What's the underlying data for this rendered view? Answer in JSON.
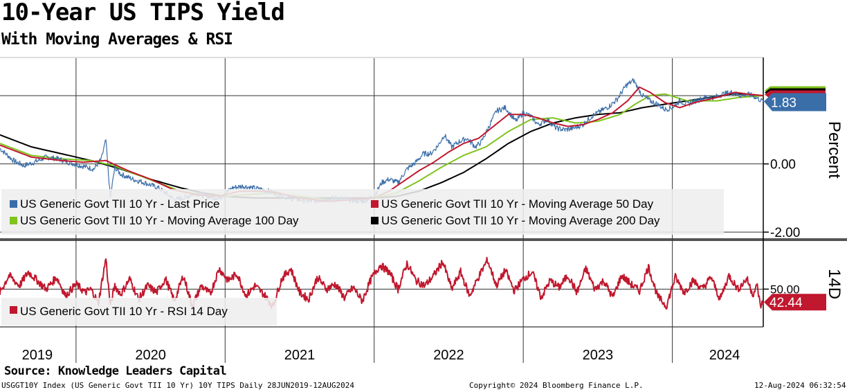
{
  "title": "10-Year US TIPS Yield",
  "subtitle": "With Moving Averages & RSI",
  "source": "Source: Knowledge Leaders Capital",
  "footer": {
    "left": "USGGT10Y Index (US Generic Govt TII 10 Yr) 10Y TIPS  Daily 28JUN2019-12AUG2024",
    "middle": "Copyright© 2024 Bloomberg Finance L.P.",
    "right": "12-Aug-2024 06:32:54"
  },
  "chart_data": [
    {
      "type": "line",
      "panel": "upper",
      "ylabel": "Percent",
      "ylim": [
        -2.2,
        3.1
      ],
      "yticks": [
        -2.0,
        0.0
      ],
      "ytick_labels": [
        "-2.00",
        "0.00"
      ],
      "x_range": [
        2019.49,
        2024.61
      ],
      "x_year_dividers": [
        2020,
        2021,
        2022,
        2023,
        2024
      ],
      "x_labels": [
        {
          "label": "2019",
          "x": 2019.74
        },
        {
          "label": "2020",
          "x": 2020.5
        },
        {
          "label": "2021",
          "x": 2021.5
        },
        {
          "label": "2022",
          "x": 2022.5
        },
        {
          "label": "2023",
          "x": 2023.5
        },
        {
          "label": "2024",
          "x": 2024.35
        }
      ],
      "last_value_label": "1.83",
      "colors": {
        "last": "#3a6ea8",
        "ma50": "#c0182e",
        "ma100": "#7fc31c",
        "ma200": "#000000"
      },
      "series": [
        {
          "name": "US Generic Govt TII 10 Yr - Last Price",
          "color": "#3a6ea8",
          "x": [
            2019.49,
            2019.58,
            2019.65,
            2019.72,
            2019.8,
            2019.88,
            2019.95,
            2020.03,
            2020.12,
            2020.17,
            2020.2,
            2020.23,
            2020.26,
            2020.3,
            2020.38,
            2020.46,
            2020.55,
            2020.6,
            2020.66,
            2020.72,
            2020.8,
            2020.88,
            2020.96,
            2021.05,
            2021.12,
            2021.18,
            2021.25,
            2021.33,
            2021.42,
            2021.5,
            2021.58,
            2021.66,
            2021.75,
            2021.83,
            2021.92,
            2022.0,
            2022.05,
            2022.1,
            2022.16,
            2022.22,
            2022.28,
            2022.33,
            2022.38,
            2022.43,
            2022.47,
            2022.52,
            2022.57,
            2022.62,
            2022.68,
            2022.72,
            2022.77,
            2022.82,
            2022.88,
            2022.95,
            2023.0,
            2023.05,
            2023.1,
            2023.16,
            2023.22,
            2023.28,
            2023.34,
            2023.4,
            2023.46,
            2023.52,
            2023.58,
            2023.63,
            2023.69,
            2023.74,
            2023.8,
            2023.85,
            2023.9,
            2023.95,
            2024.0,
            2024.05,
            2024.1,
            2024.16,
            2024.22,
            2024.28,
            2024.34,
            2024.4,
            2024.46,
            2024.5,
            2024.54,
            2024.58,
            2024.61
          ],
          "y": [
            0.45,
            0.1,
            -0.05,
            0.05,
            0.2,
            0.15,
            0.05,
            -0.05,
            -0.15,
            0.15,
            0.7,
            -1.0,
            -0.1,
            -0.3,
            -0.45,
            -0.55,
            -0.7,
            -0.85,
            -1.05,
            -1.0,
            -0.85,
            -0.95,
            -1.0,
            -0.7,
            -0.65,
            -0.7,
            -0.75,
            -0.85,
            -1.0,
            -1.05,
            -1.1,
            -1.05,
            -1.0,
            -1.05,
            -1.1,
            -0.95,
            -0.55,
            -0.45,
            -0.55,
            -0.15,
            0.05,
            0.3,
            0.3,
            0.55,
            0.85,
            0.5,
            0.65,
            0.75,
            0.5,
            0.65,
            1.1,
            1.55,
            1.65,
            1.25,
            1.5,
            1.4,
            1.15,
            1.3,
            1.05,
            1.0,
            1.05,
            1.15,
            1.4,
            1.55,
            1.7,
            1.9,
            2.3,
            2.45,
            2.0,
            1.85,
            1.75,
            1.6,
            1.65,
            1.85,
            1.75,
            1.85,
            1.95,
            1.95,
            2.05,
            2.1,
            2.0,
            2.05,
            2.0,
            1.9,
            1.83
          ]
        },
        {
          "name": "US Generic Govt TII 10 Yr - Moving Average 50 Day",
          "color": "#c0182e",
          "x": [
            2019.49,
            2019.7,
            2019.9,
            2020.05,
            2020.2,
            2020.35,
            2020.5,
            2020.65,
            2020.8,
            2020.95,
            2021.1,
            2021.3,
            2021.5,
            2021.7,
            2021.85,
            2022.0,
            2022.1,
            2022.2,
            2022.3,
            2022.4,
            2022.5,
            2022.6,
            2022.7,
            2022.8,
            2022.9,
            2023.0,
            2023.1,
            2023.2,
            2023.3,
            2023.4,
            2023.5,
            2023.6,
            2023.7,
            2023.78,
            2023.85,
            2023.95,
            2024.05,
            2024.15,
            2024.3,
            2024.42,
            2024.5,
            2024.61
          ],
          "y": [
            0.55,
            0.2,
            0.1,
            0.05,
            0.1,
            -0.2,
            -0.45,
            -0.75,
            -0.9,
            -0.95,
            -0.8,
            -0.8,
            -1.0,
            -1.1,
            -1.05,
            -1.0,
            -0.8,
            -0.5,
            -0.2,
            0.05,
            0.35,
            0.6,
            0.75,
            1.1,
            1.45,
            1.45,
            1.35,
            1.2,
            1.1,
            1.15,
            1.3,
            1.5,
            1.85,
            2.25,
            2.1,
            1.8,
            1.65,
            1.8,
            1.95,
            2.1,
            2.05,
            2.0
          ]
        },
        {
          "name": "US Generic Govt TII 10 Yr - Moving Average 100 Day",
          "color": "#7fc31c",
          "x": [
            2019.49,
            2019.7,
            2019.9,
            2020.1,
            2020.25,
            2020.4,
            2020.55,
            2020.7,
            2020.85,
            2021.0,
            2021.15,
            2021.3,
            2021.5,
            2021.7,
            2021.85,
            2022.0,
            2022.15,
            2022.3,
            2022.45,
            2022.6,
            2022.75,
            2022.9,
            2023.05,
            2023.2,
            2023.35,
            2023.5,
            2023.65,
            2023.75,
            2023.85,
            2023.95,
            2024.1,
            2024.3,
            2024.45,
            2024.61
          ],
          "y": [
            0.6,
            0.25,
            0.15,
            0.1,
            -0.05,
            -0.3,
            -0.55,
            -0.8,
            -0.9,
            -0.95,
            -0.9,
            -0.85,
            -0.95,
            -1.05,
            -1.05,
            -1.0,
            -0.85,
            -0.5,
            -0.1,
            0.25,
            0.5,
            0.95,
            1.3,
            1.35,
            1.2,
            1.25,
            1.45,
            1.75,
            2.0,
            2.05,
            1.85,
            1.85,
            1.95,
            2.0
          ]
        },
        {
          "name": "US Generic Govt TII 10 Yr - Moving Average 200 Day",
          "color": "#000000",
          "x": [
            2019.49,
            2019.7,
            2019.9,
            2020.1,
            2020.3,
            2020.5,
            2020.7,
            2020.85,
            2021.0,
            2021.2,
            2021.4,
            2021.6,
            2021.8,
            2022.0,
            2022.15,
            2022.3,
            2022.45,
            2022.6,
            2022.75,
            2022.9,
            2023.05,
            2023.2,
            2023.35,
            2023.5,
            2023.65,
            2023.8,
            2023.95,
            2024.1,
            2024.25,
            2024.4,
            2024.5,
            2024.61
          ],
          "y": [
            0.85,
            0.5,
            0.3,
            0.1,
            -0.15,
            -0.45,
            -0.7,
            -0.85,
            -0.95,
            -1.0,
            -1.0,
            -1.0,
            -1.0,
            -1.0,
            -0.95,
            -0.8,
            -0.55,
            -0.25,
            0.15,
            0.6,
            0.95,
            1.2,
            1.35,
            1.45,
            1.5,
            1.65,
            1.75,
            1.85,
            1.95,
            2.05,
            2.05,
            2.0
          ]
        }
      ]
    },
    {
      "type": "line",
      "panel": "lower",
      "ylabel": "14D",
      "ylim": [
        28,
        78
      ],
      "yticks": [
        50
      ],
      "ytick_labels": [
        "50.00"
      ],
      "last_value_label": "42.44",
      "series": [
        {
          "name": "US Generic Govt TII 10 Yr - RSI 14 Day",
          "color": "#c0182e",
          "x": [
            2019.49,
            2019.55,
            2019.62,
            2019.68,
            2019.74,
            2019.8,
            2019.87,
            2019.93,
            2020.0,
            2020.06,
            2020.1,
            2020.15,
            2020.2,
            2020.23,
            2020.26,
            2020.3,
            2020.36,
            2020.42,
            2020.48,
            2020.54,
            2020.6,
            2020.66,
            2020.72,
            2020.78,
            2020.84,
            2020.9,
            2020.96,
            2021.02,
            2021.08,
            2021.14,
            2021.2,
            2021.26,
            2021.32,
            2021.38,
            2021.44,
            2021.5,
            2021.56,
            2021.62,
            2021.68,
            2021.74,
            2021.8,
            2021.86,
            2021.92,
            2021.98,
            2022.04,
            2022.1,
            2022.16,
            2022.22,
            2022.28,
            2022.34,
            2022.4,
            2022.46,
            2022.52,
            2022.58,
            2022.64,
            2022.7,
            2022.76,
            2022.82,
            2022.88,
            2022.94,
            2023.0,
            2023.06,
            2023.12,
            2023.18,
            2023.24,
            2023.3,
            2023.36,
            2023.42,
            2023.48,
            2023.54,
            2023.6,
            2023.66,
            2023.72,
            2023.78,
            2023.84,
            2023.9,
            2023.96,
            2024.02,
            2024.08,
            2024.14,
            2024.2,
            2024.26,
            2024.32,
            2024.38,
            2024.44,
            2024.5,
            2024.54,
            2024.57,
            2024.59,
            2024.61
          ],
          "y": [
            48,
            58,
            52,
            60,
            55,
            50,
            57,
            46,
            53,
            48,
            50,
            42,
            68,
            40,
            52,
            47,
            56,
            44,
            52,
            48,
            56,
            43,
            58,
            40,
            52,
            47,
            62,
            55,
            59,
            46,
            52,
            47,
            40,
            56,
            62,
            48,
            44,
            57,
            50,
            53,
            45,
            51,
            43,
            56,
            64,
            60,
            50,
            65,
            55,
            52,
            58,
            66,
            50,
            60,
            46,
            57,
            67,
            52,
            61,
            49,
            56,
            60,
            45,
            55,
            51,
            58,
            48,
            62,
            50,
            55,
            45,
            58,
            53,
            49,
            63,
            46,
            40,
            57,
            48,
            55,
            50,
            57,
            44,
            58,
            50,
            56,
            47,
            52,
            40,
            42.44
          ]
        }
      ]
    }
  ]
}
